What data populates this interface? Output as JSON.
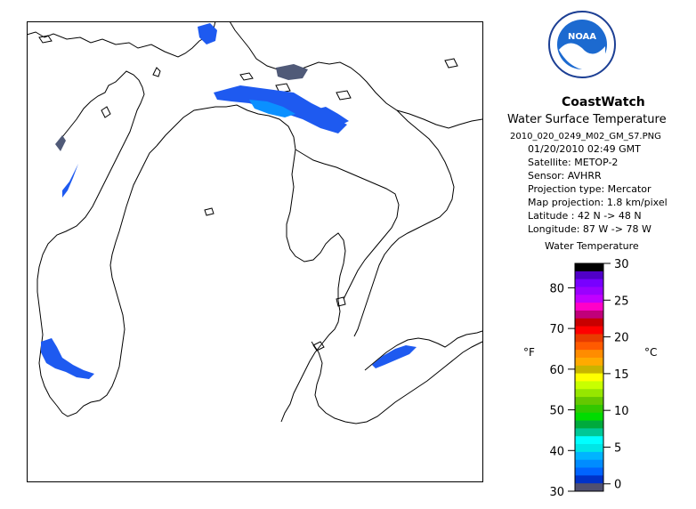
{
  "logo": {
    "name": "noaa-logo",
    "text": "NOAA"
  },
  "header": {
    "title": "CoastWatch",
    "subtitle": "Water Surface Temperature",
    "filename": "2010_020_0249_M02_GM_S7.PNG",
    "datetime": "01/20/2010   02:49 GMT"
  },
  "metadata": [
    "Satellite: METOP-2",
    "Sensor: AVHRR",
    "Projection type:  Mercator",
    "Map projection: 1.8 km/pixel",
    "Latitude : 42 N -> 48 N",
    "Longitude: 87 W -> 78 W"
  ],
  "scale": {
    "title": "Water Temperature",
    "f_unit": "°F",
    "c_unit": "°C",
    "f_ticks": [
      "80",
      "70",
      "60",
      "50",
      "40",
      "30"
    ],
    "c_ticks": [
      "30",
      "25",
      "20",
      "15",
      "10",
      "5",
      "0"
    ],
    "colors": [
      "#000000",
      "#5000c8",
      "#7800ff",
      "#9a00ff",
      "#c000ff",
      "#ff00c8",
      "#c0007a",
      "#c80000",
      "#ff0000",
      "#e83c00",
      "#ff5a00",
      "#ff8c00",
      "#ffaa00",
      "#c8b400",
      "#ffff00",
      "#c8ff00",
      "#96e600",
      "#64c800",
      "#32c800",
      "#00dc00",
      "#00aa3c",
      "#00c896",
      "#00ffff",
      "#00e6e6",
      "#00b4ff",
      "#008cff",
      "#0064ff",
      "#0032c8",
      "#505070"
    ]
  },
  "colors": {
    "ice_fill": "#1e5af0",
    "warm_fill": "#0a90ff",
    "dark_fill": "#505a78"
  }
}
